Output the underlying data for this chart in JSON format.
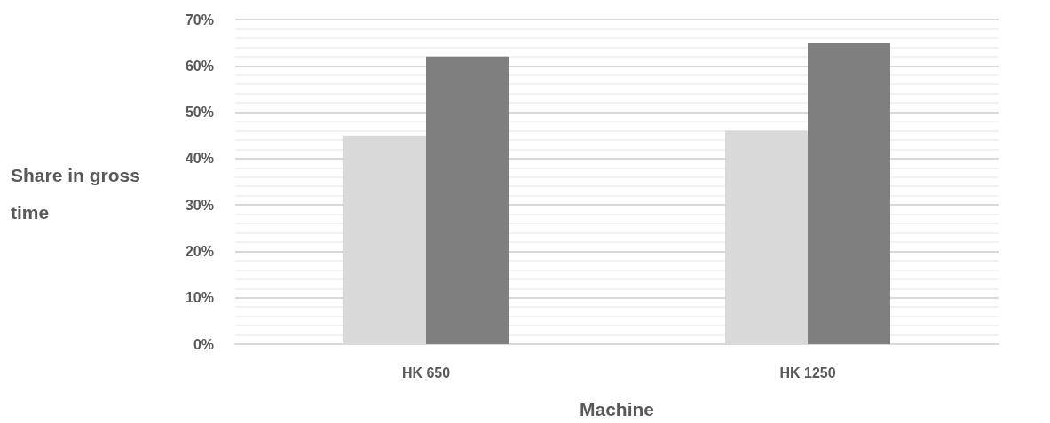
{
  "chart_data": {
    "type": "bar",
    "xlabel": "Machine",
    "ylabel": "Share in gross time",
    "categories": [
      "HK 650",
      "HK 1250"
    ],
    "series": [
      {
        "color": "#d9d9d9",
        "values": [
          45,
          46
        ]
      },
      {
        "color": "#7f7f7f",
        "values": [
          62,
          65
        ]
      }
    ],
    "ylim": [
      0,
      70
    ],
    "yticks": [
      {
        "value": 0,
        "label": "0%"
      },
      {
        "value": 10,
        "label": "10%"
      },
      {
        "value": 20,
        "label": "20%"
      },
      {
        "value": 30,
        "label": "30%"
      },
      {
        "value": 40,
        "label": "40%"
      },
      {
        "value": 50,
        "label": "50%"
      },
      {
        "value": 60,
        "label": "60%"
      },
      {
        "value": 70,
        "label": "70%"
      }
    ],
    "grid": true
  }
}
